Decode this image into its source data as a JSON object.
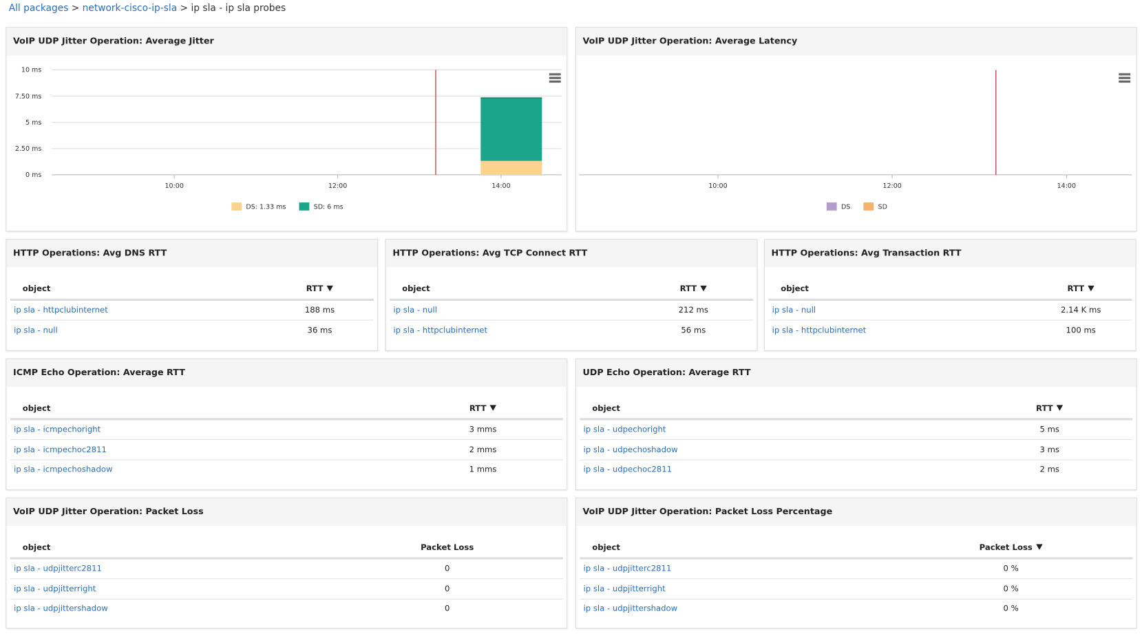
{
  "breadcrumb": {
    "links": [
      "All packages",
      "network-cisco-ip-sla"
    ],
    "separator": ">",
    "current": "ip sla - ip sla probes"
  },
  "charts": [
    {
      "type": "bar",
      "title": "VoIP UDP Jitter Operation: Average Jitter",
      "stacked": true,
      "xlim": [
        8.5,
        14.74
      ],
      "xticks": [
        {
          "value": 10,
          "label": "10:00"
        },
        {
          "value": 12,
          "label": "12:00"
        },
        {
          "value": 14,
          "label": "14:00"
        }
      ],
      "ylim": [
        0,
        10
      ],
      "yticks": [
        {
          "value": 0,
          "label": "0 ms"
        },
        {
          "value": 2.5,
          "label": "2.50 ms"
        },
        {
          "value": 5,
          "label": "5 ms"
        },
        {
          "value": 7.5,
          "label": "7.50 ms"
        },
        {
          "value": 10,
          "label": "10 ms"
        }
      ],
      "grid": true,
      "now_marker": 13.2,
      "bins": [
        13.75,
        14.5
      ],
      "series": [
        {
          "name": "DS: 1.33 ms",
          "color": "#fbd38d",
          "values": [
            1.33
          ]
        },
        {
          "name": "SD: 6 ms",
          "color": "#1ba68b",
          "values": [
            6
          ]
        }
      ]
    },
    {
      "type": "bar",
      "title": "VoIP UDP Jitter Operation: Average Latency",
      "stacked": true,
      "xlim": [
        8.49,
        14.75
      ],
      "xticks": [
        {
          "value": 10,
          "label": "10:00"
        },
        {
          "value": 12,
          "label": "12:00"
        },
        {
          "value": 14,
          "label": "14:00"
        }
      ],
      "now_marker": 13.19,
      "series": [
        {
          "name": "DS",
          "color": "#b39ccb",
          "values": []
        },
        {
          "name": "SD",
          "color": "#f2b26b",
          "values": []
        }
      ]
    }
  ],
  "tables": [
    {
      "title": "HTTP Operations: Avg DNS RTT",
      "columns": [
        "object",
        "RTT"
      ],
      "sorted": true,
      "rows": [
        [
          "ip sla - httpclubinternet",
          "188 ms"
        ],
        [
          "ip sla - null",
          "36 ms"
        ]
      ]
    },
    {
      "title": "HTTP Operations: Avg TCP Connect RTT",
      "columns": [
        "object",
        "RTT"
      ],
      "sorted": true,
      "rows": [
        [
          "ip sla - null",
          "212 ms"
        ],
        [
          "ip sla - httpclubinternet",
          "56 ms"
        ]
      ]
    },
    {
      "title": "HTTP Operations: Avg Transaction RTT",
      "columns": [
        "object",
        "RTT"
      ],
      "sorted": true,
      "rows": [
        [
          "ip sla - null",
          "2.14 K ms"
        ],
        [
          "ip sla - httpclubinternet",
          "100 ms"
        ]
      ]
    },
    {
      "title": "ICMP Echo Operation: Average RTT",
      "columns": [
        "object",
        "RTT"
      ],
      "sorted": true,
      "rows": [
        [
          "ip sla - icmpechoright",
          "3 mms"
        ],
        [
          "ip sla - icmpechoc2811",
          "2 mms"
        ],
        [
          "ip sla - icmpechoshadow",
          "1 mms"
        ]
      ]
    },
    {
      "title": "UDP Echo Operation: Average RTT",
      "columns": [
        "object",
        "RTT"
      ],
      "sorted": true,
      "rows": [
        [
          "ip sla - udpechoright",
          "5 ms"
        ],
        [
          "ip sla - udpechoshadow",
          "3 ms"
        ],
        [
          "ip sla - udpechoc2811",
          "2 ms"
        ]
      ]
    },
    {
      "title": "VoIP UDP Jitter Operation: Packet Loss",
      "columns": [
        "object",
        "Packet Loss"
      ],
      "sorted": false,
      "rows": [
        [
          "ip sla - udpjitterc2811",
          "0"
        ],
        [
          "ip sla - udpjitterright",
          "0"
        ],
        [
          "ip sla - udpjittershadow",
          "0"
        ]
      ]
    },
    {
      "title": "VoIP UDP Jitter Operation: Packet Loss Percentage",
      "columns": [
        "object",
        "Packet Loss"
      ],
      "sorted": true,
      "rows": [
        [
          "ip sla - udpjitterc2811",
          "0 %"
        ],
        [
          "ip sla - udpjitterright",
          "0 %"
        ],
        [
          "ip sla - udpjittershadow",
          "0 %"
        ]
      ]
    }
  ]
}
